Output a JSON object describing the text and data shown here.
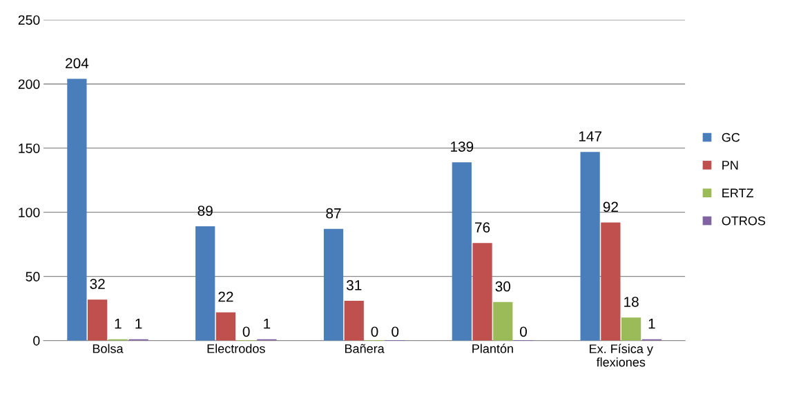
{
  "chart_data": {
    "type": "bar",
    "categories": [
      "Bolsa",
      "Electrodos",
      "Bañera",
      "Plantón",
      "Ex. Física y\nflexiones"
    ],
    "series": [
      {
        "name": "GC",
        "color": "#4a7ebb",
        "values": [
          204,
          89,
          87,
          139,
          147
        ]
      },
      {
        "name": "PN",
        "color": "#c0504d",
        "values": [
          32,
          22,
          31,
          76,
          92
        ]
      },
      {
        "name": "ERTZ",
        "color": "#9bbb59",
        "values": [
          1,
          0,
          0,
          30,
          18
        ]
      },
      {
        "name": "OTROS",
        "color": "#8064a2",
        "values": [
          1,
          1,
          0,
          0,
          1
        ]
      }
    ],
    "ylim": [
      0,
      250
    ],
    "yticks": [
      0,
      50,
      100,
      150,
      200,
      250
    ],
    "grid": "y",
    "legend": "right",
    "data_labels": true
  }
}
